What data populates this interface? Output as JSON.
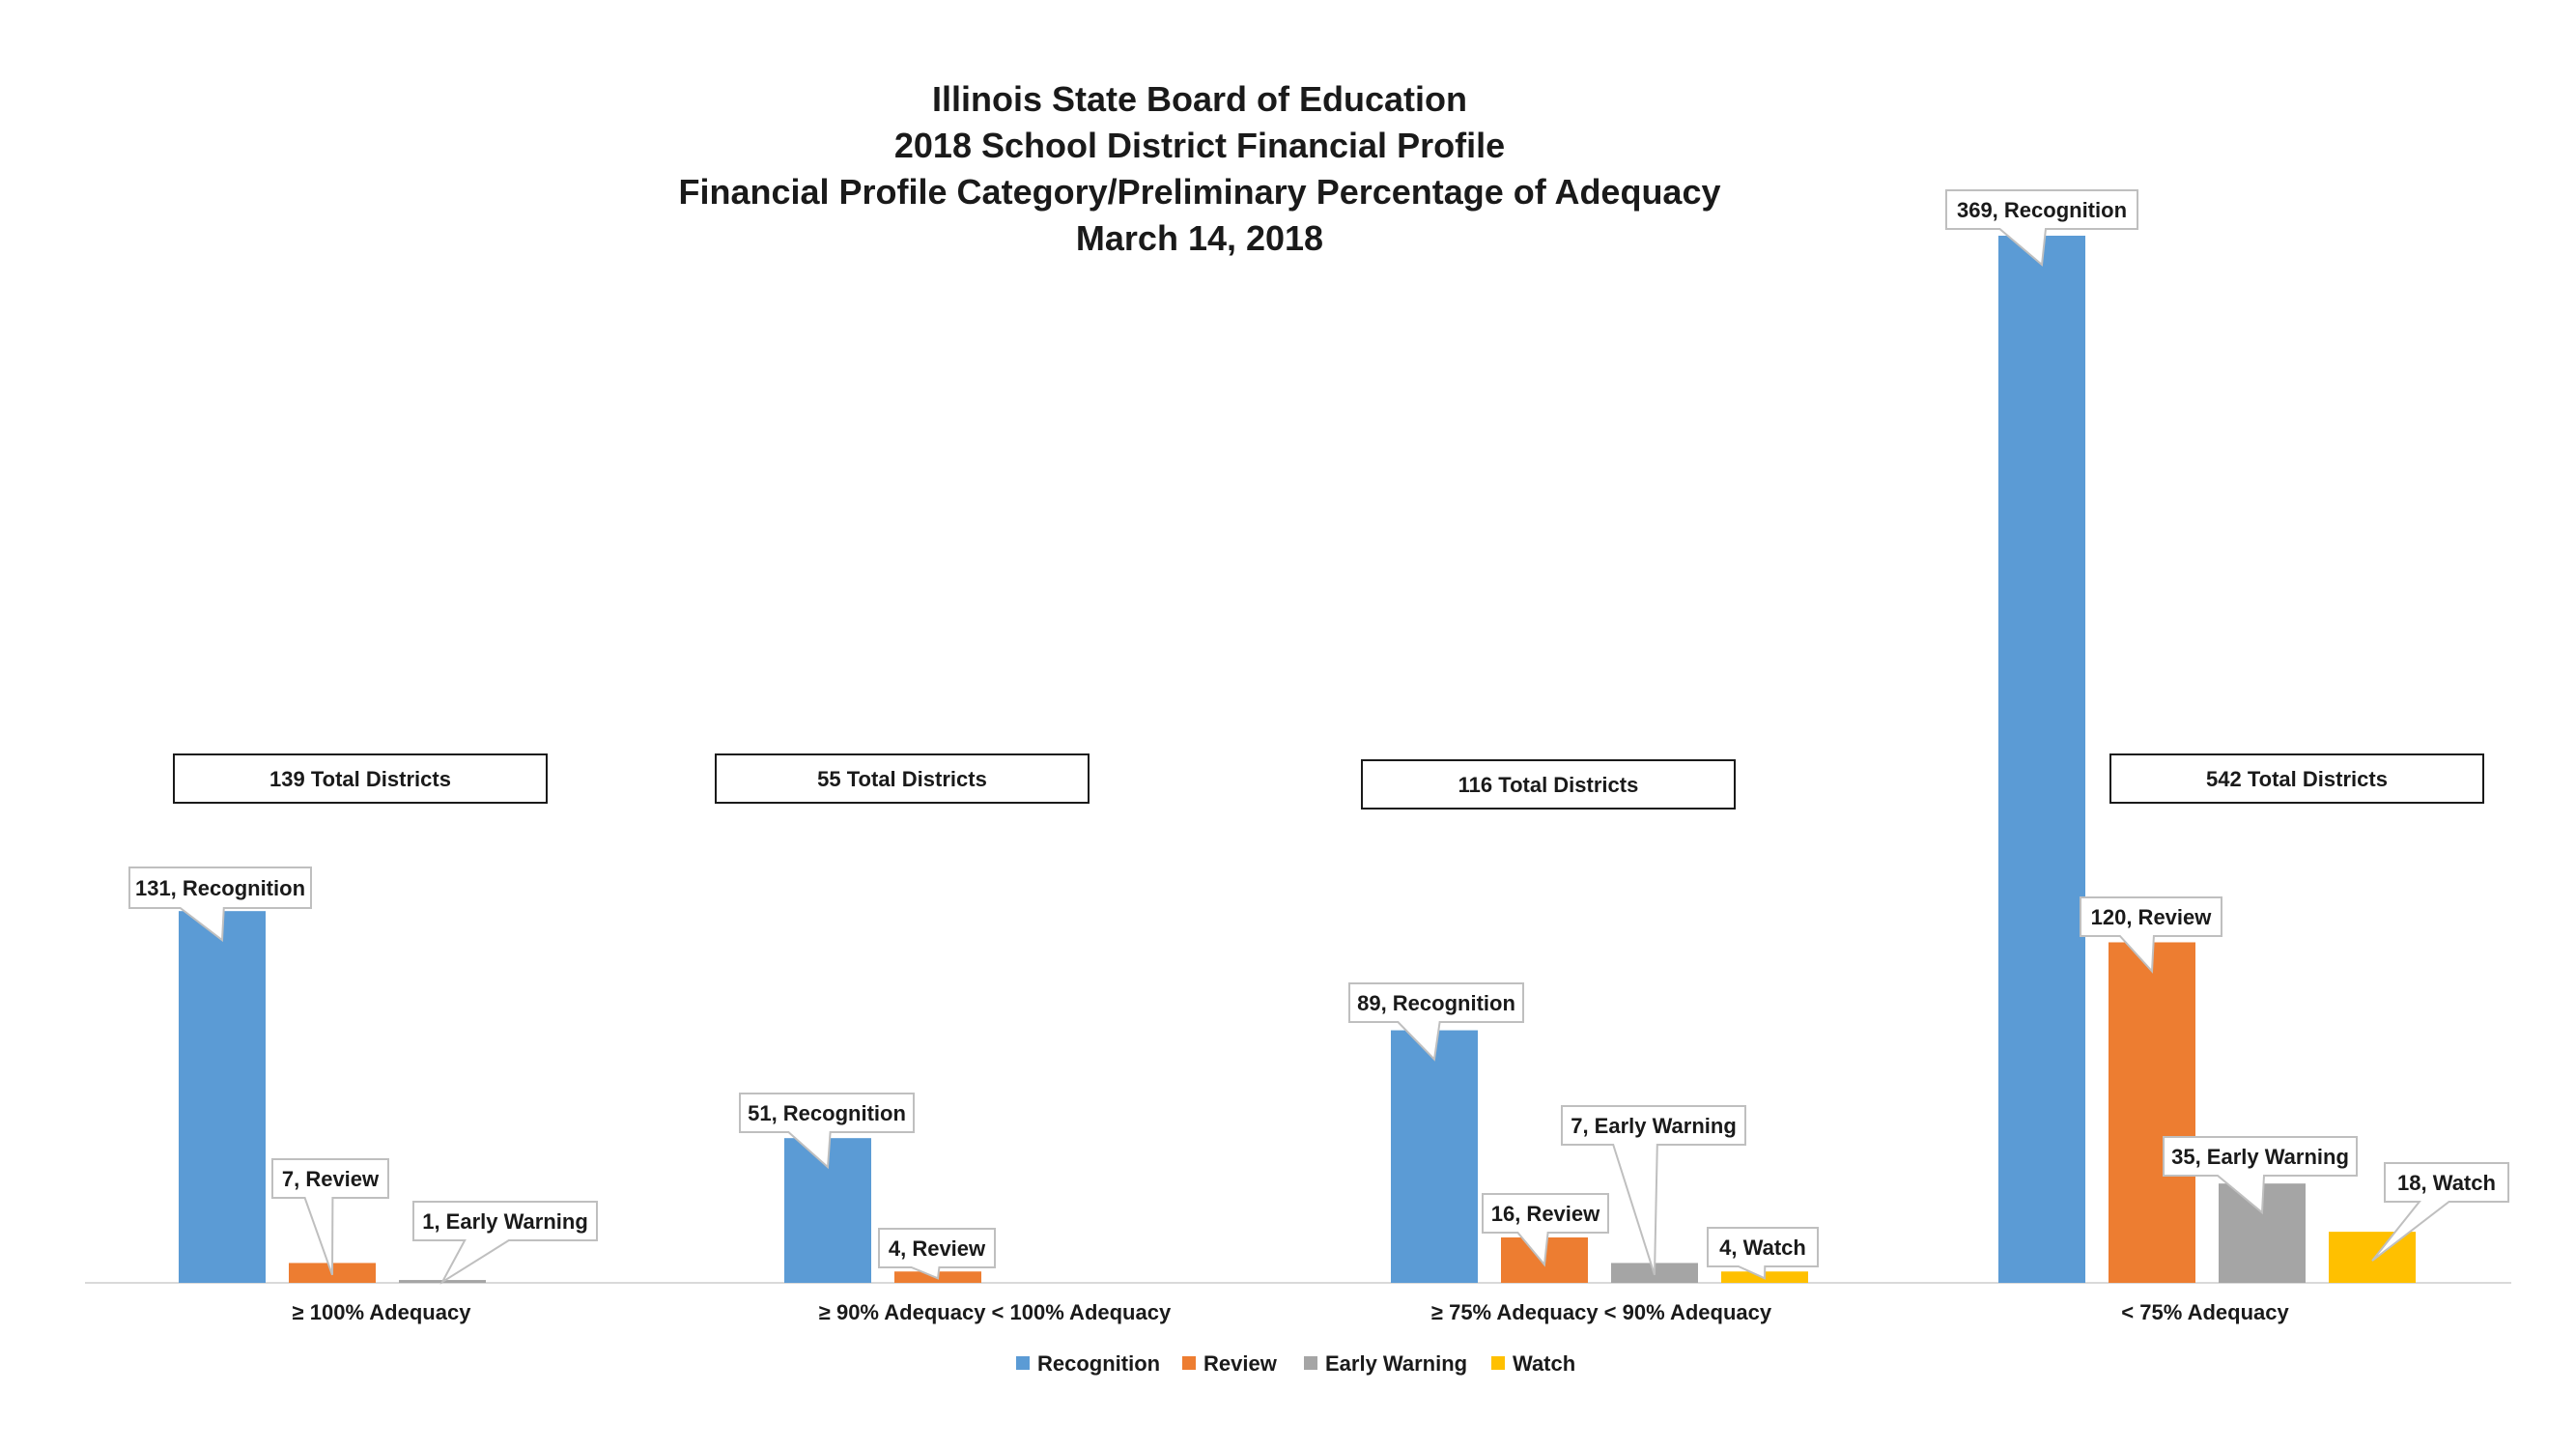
{
  "chart_data": {
    "type": "bar",
    "title_lines": [
      "Illinois State Board of Education",
      "2018 School District Financial Profile",
      "Financial Profile Category/Preliminary Percentage of Adequacy",
      "March 14, 2018"
    ],
    "categories": [
      "≥ 100% Adequacy",
      "≥ 90% Adequacy < 100% Adequacy",
      "≥ 75% Adequacy < 90% Adequacy",
      "< 75% Adequacy"
    ],
    "series": [
      {
        "name": "Recognition",
        "color": "#5b9bd5",
        "values": [
          131,
          51,
          89,
          369
        ]
      },
      {
        "name": "Review",
        "color": "#ed7d31",
        "values": [
          7,
          4,
          16,
          120
        ]
      },
      {
        "name": "Early Warning",
        "color": "#a5a5a5",
        "values": [
          1,
          null,
          7,
          35
        ]
      },
      {
        "name": "Watch",
        "color": "#ffc000",
        "values": [
          null,
          null,
          4,
          18
        ]
      }
    ],
    "data_labels": [
      [
        "131, Recognition",
        "7, Review",
        "1, Early Warning",
        null
      ],
      [
        "51, Recognition",
        "4, Review",
        null,
        null
      ],
      [
        "89, Recognition",
        "16, Review",
        "7, Early Warning",
        "4, Watch"
      ],
      [
        "369, Recognition",
        "120, Review",
        "35, Early Warning",
        "18, Watch"
      ]
    ],
    "totals": [
      "139 Total Districts",
      "55 Total Districts",
      "116 Total Districts",
      "542 Total Districts"
    ],
    "ylim": [
      0,
      375
    ],
    "grid": false,
    "legend_position": "bottom"
  }
}
